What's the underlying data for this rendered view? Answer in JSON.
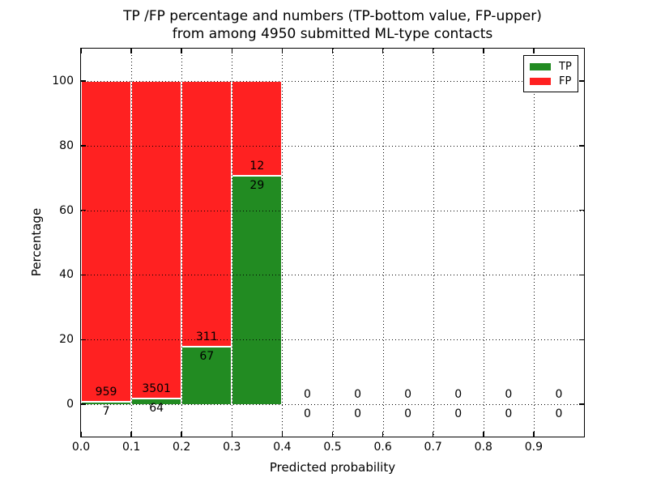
{
  "title": {
    "line1": "TP /FP percentage and numbers (TP-bottom value, FP-upper)",
    "line2": "from among 4950 submitted ML-type contacts"
  },
  "axes": {
    "xlabel": "Predicted probability",
    "ylabel": "Percentage",
    "xlim": [
      0.0,
      1.0
    ],
    "ylim": [
      -10,
      110
    ],
    "x_ticks": [
      {
        "label": "0.0",
        "value": 0.0
      },
      {
        "label": "0.1",
        "value": 0.1
      },
      {
        "label": "0.2",
        "value": 0.2
      },
      {
        "label": "0.3",
        "value": 0.3
      },
      {
        "label": "0.4",
        "value": 0.4
      },
      {
        "label": "0.5",
        "value": 0.5
      },
      {
        "label": "0.6",
        "value": 0.6
      },
      {
        "label": "0.7",
        "value": 0.7
      },
      {
        "label": "0.8",
        "value": 0.8
      },
      {
        "label": "0.9",
        "value": 0.9
      }
    ],
    "y_ticks": [
      {
        "label": "0",
        "value": 0
      },
      {
        "label": "20",
        "value": 20
      },
      {
        "label": "40",
        "value": 40
      },
      {
        "label": "60",
        "value": 60
      },
      {
        "label": "80",
        "value": 80
      },
      {
        "label": "100",
        "value": 100
      }
    ],
    "grid": "dotted"
  },
  "legend": {
    "position": "upper right",
    "items": [
      {
        "label": "TP",
        "color": "#228B22"
      },
      {
        "label": "FP",
        "color": "#FF2121"
      }
    ]
  },
  "colors": {
    "tp": "#228B22",
    "fp": "#FF2121",
    "bar_edge": "#ffffff",
    "axis": "#000000",
    "text": "#000000",
    "background": "#ffffff"
  },
  "chart_data": {
    "type": "bar",
    "stacked": true,
    "normalized_to_percent": 100,
    "total_contacts": 4950,
    "title": "TP /FP percentage and numbers (TP-bottom value, FP-upper) from among 4950 submitted ML-type contacts",
    "xlabel": "Predicted probability",
    "ylabel": "Percentage",
    "xlim": [
      0.0,
      1.0
    ],
    "ylim": [
      -10,
      110
    ],
    "legend_position": "upper right",
    "series": [
      {
        "name": "TP",
        "color": "#228B22",
        "counts": [
          7,
          64,
          67,
          29,
          0,
          0,
          0,
          0,
          0,
          0
        ],
        "percent": [
          0.72,
          1.8,
          17.72,
          70.73,
          0,
          0,
          0,
          0,
          0,
          0
        ]
      },
      {
        "name": "FP",
        "color": "#FF2121",
        "counts": [
          959,
          3501,
          311,
          12,
          0,
          0,
          0,
          0,
          0,
          0
        ],
        "percent": [
          99.28,
          98.2,
          82.28,
          29.27,
          0,
          0,
          0,
          0,
          0,
          0
        ]
      }
    ],
    "bins": [
      {
        "x0": 0.0,
        "x1": 0.1,
        "tp": 7,
        "fp": 959,
        "tp_pct": 0.72,
        "fp_pct": 99.28
      },
      {
        "x0": 0.1,
        "x1": 0.2,
        "tp": 64,
        "fp": 3501,
        "tp_pct": 1.8,
        "fp_pct": 98.2
      },
      {
        "x0": 0.2,
        "x1": 0.3,
        "tp": 67,
        "fp": 311,
        "tp_pct": 17.72,
        "fp_pct": 82.28
      },
      {
        "x0": 0.3,
        "x1": 0.4,
        "tp": 29,
        "fp": 12,
        "tp_pct": 70.73,
        "fp_pct": 29.27
      },
      {
        "x0": 0.4,
        "x1": 0.5,
        "tp": 0,
        "fp": 0,
        "tp_pct": 0,
        "fp_pct": 0
      },
      {
        "x0": 0.5,
        "x1": 0.6,
        "tp": 0,
        "fp": 0,
        "tp_pct": 0,
        "fp_pct": 0
      },
      {
        "x0": 0.6,
        "x1": 0.7,
        "tp": 0,
        "fp": 0,
        "tp_pct": 0,
        "fp_pct": 0
      },
      {
        "x0": 0.7,
        "x1": 0.8,
        "tp": 0,
        "fp": 0,
        "tp_pct": 0,
        "fp_pct": 0
      },
      {
        "x0": 0.8,
        "x1": 0.9,
        "tp": 0,
        "fp": 0,
        "tp_pct": 0,
        "fp_pct": 0
      },
      {
        "x0": 0.9,
        "x1": 1.0,
        "tp": 0,
        "fp": 0,
        "tp_pct": 0,
        "fp_pct": 0
      }
    ]
  }
}
